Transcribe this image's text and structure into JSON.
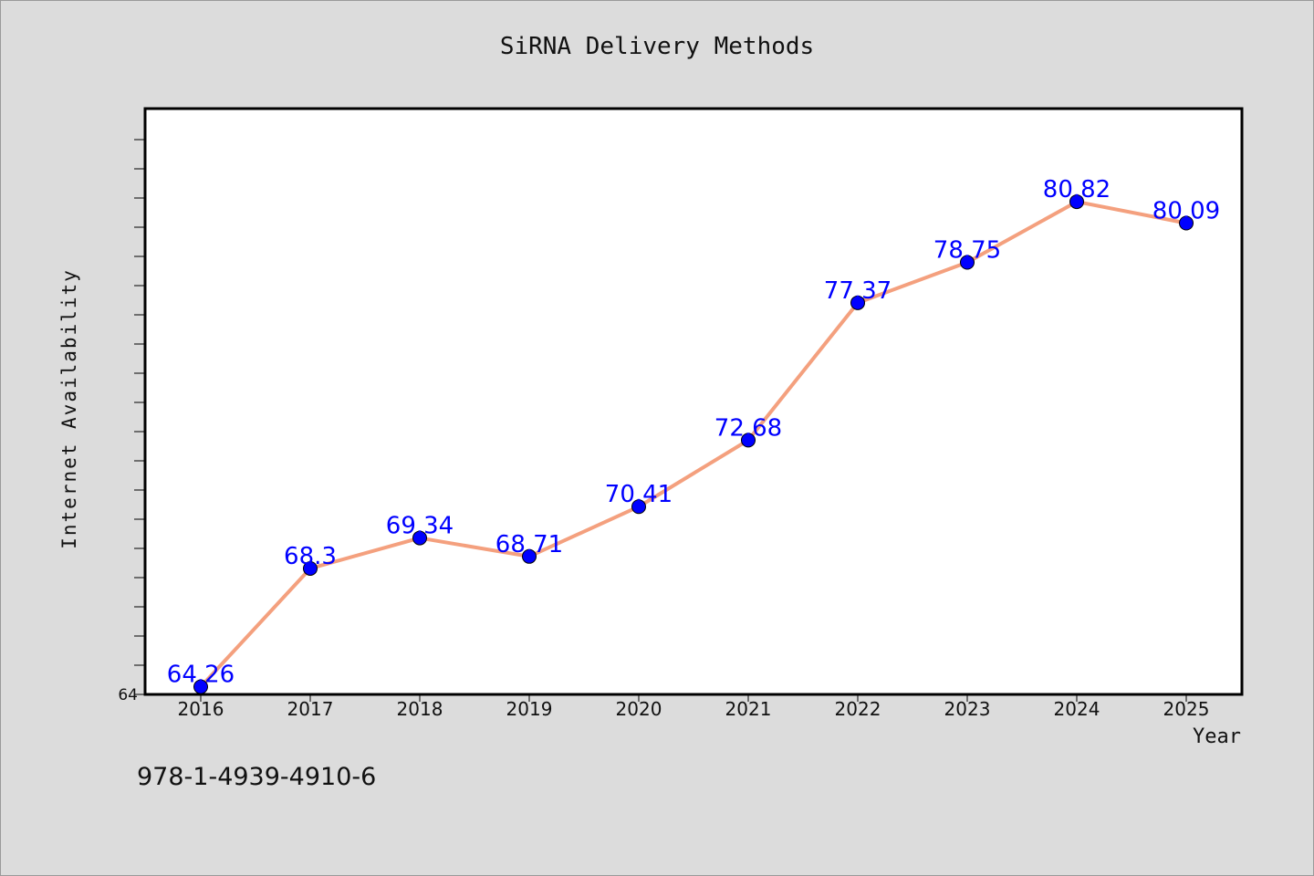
{
  "chart_data": {
    "type": "line",
    "title": "SiRNA Delivery Methods",
    "xlabel": "Year",
    "ylabel": "Internet Availability",
    "x": [
      "2016",
      "2017",
      "2018",
      "2019",
      "2020",
      "2021",
      "2022",
      "2023",
      "2024",
      "2025"
    ],
    "series": [
      {
        "values": [
          64.26,
          68.3,
          69.34,
          68.71,
          70.41,
          72.68,
          77.37,
          78.75,
          80.82,
          80.09
        ],
        "line_color": "#f4a07e",
        "marker_color": "#0000ff",
        "label_color": "#0000ff"
      }
    ],
    "ylim": [
      64,
      84
    ],
    "y_tick_labels": [
      "64"
    ],
    "grid": false,
    "legend": "none"
  },
  "footer": {
    "code": "978-1-4939-4910-6"
  },
  "colors": {
    "background": "#dcdcdc",
    "plot_background": "#ffffff",
    "axis": "#000000"
  }
}
